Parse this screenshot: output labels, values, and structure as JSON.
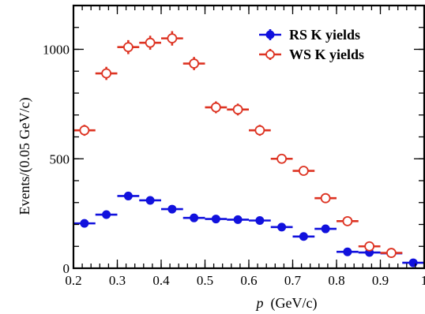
{
  "chart_data": {
    "type": "scatter",
    "xlabel_var": "p",
    "xlabel_unit": "(GeV/c)",
    "ylabel": "Events/(0.05 GeV/c)",
    "xlim": [
      0.2,
      1.0
    ],
    "ylim": [
      0,
      1200
    ],
    "x_ticks": [
      0.2,
      0.3,
      0.4,
      0.5,
      0.6,
      0.7,
      0.8,
      0.9,
      1.0
    ],
    "x_tick_labels": [
      "0.2",
      "0.3",
      "0.4",
      "0.5",
      "0.6",
      "0.7",
      "0.8",
      "0.9",
      "1"
    ],
    "y_ticks": [
      0,
      500,
      1000
    ],
    "y_tick_labels": [
      "0",
      "500",
      "1000"
    ],
    "grid": false,
    "legend_position": "top-right",
    "bin_half_width": 0.025,
    "series": [
      {
        "name": "RS K yields",
        "marker": "filled-circle",
        "color": "#1111dd",
        "x": [
          0.225,
          0.275,
          0.325,
          0.375,
          0.425,
          0.475,
          0.525,
          0.575,
          0.625,
          0.675,
          0.725,
          0.775,
          0.825,
          0.875,
          0.925,
          0.975
        ],
        "y": [
          205,
          245,
          330,
          310,
          270,
          230,
          225,
          222,
          218,
          188,
          145,
          180,
          75,
          72,
          68,
          25
        ],
        "yerr": [
          15,
          16,
          19,
          18,
          17,
          16,
          15,
          15,
          15,
          14,
          13,
          14,
          9,
          9,
          9,
          5
        ]
      },
      {
        "name": "WS K yields",
        "marker": "open-circle-cross",
        "color": "#dd3322",
        "x": [
          0.225,
          0.275,
          0.325,
          0.375,
          0.425,
          0.475,
          0.525,
          0.575,
          0.625,
          0.675,
          0.725,
          0.775,
          0.825,
          0.875,
          0.925
        ],
        "y": [
          630,
          890,
          1010,
          1030,
          1050,
          935,
          735,
          725,
          630,
          500,
          445,
          320,
          215,
          100,
          70
        ],
        "yerr": [
          25,
          30,
          32,
          32,
          33,
          30,
          27,
          27,
          25,
          22,
          21,
          18,
          14,
          10,
          8
        ]
      }
    ]
  },
  "colors": {
    "rs": "#1111dd",
    "ws": "#dd3322",
    "axis": "#000000"
  }
}
